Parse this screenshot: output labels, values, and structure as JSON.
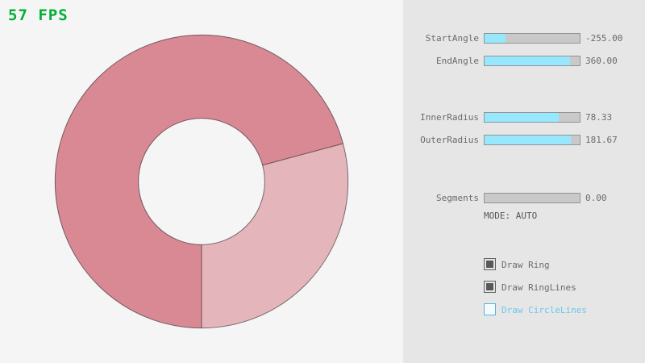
{
  "app": {
    "background": "#f5f5f5",
    "panel_background": "#e6e6e6"
  },
  "fps": {
    "text": "57 FPS",
    "color": "#00af35"
  },
  "controls": {
    "sliders": [
      {
        "label": "StartAngle",
        "value": "-255.00",
        "fill_pct": 21.7
      },
      {
        "label": "EndAngle",
        "value": "360.00",
        "fill_pct": 90
      },
      {
        "label": "InnerRadius",
        "value": "78.33",
        "fill_pct": 78.3
      },
      {
        "label": "OuterRadius",
        "value": "181.67",
        "fill_pct": 90.8
      },
      {
        "label": "Segments",
        "value": "0.00",
        "fill_pct": 0
      }
    ],
    "mode_text": "MODE: AUTO",
    "checkboxes": [
      {
        "label": "Draw Ring",
        "checked": true,
        "highlight": false
      },
      {
        "label": "Draw RingLines",
        "checked": true,
        "highlight": false
      },
      {
        "label": "Draw CircleLines",
        "checked": false,
        "highlight": true
      }
    ],
    "accent_fill_color": "#97e8ff",
    "focus_color": "#6dc7ec"
  },
  "ring": {
    "start_angle": -255,
    "end_angle": 360,
    "inner_radius": 78.33,
    "outer_radius": 181.67,
    "segments": 0,
    "color_light": "#e5b5bc",
    "color_dark": "#d98994",
    "outline_color": "rgba(0,0,0,0.5)"
  }
}
